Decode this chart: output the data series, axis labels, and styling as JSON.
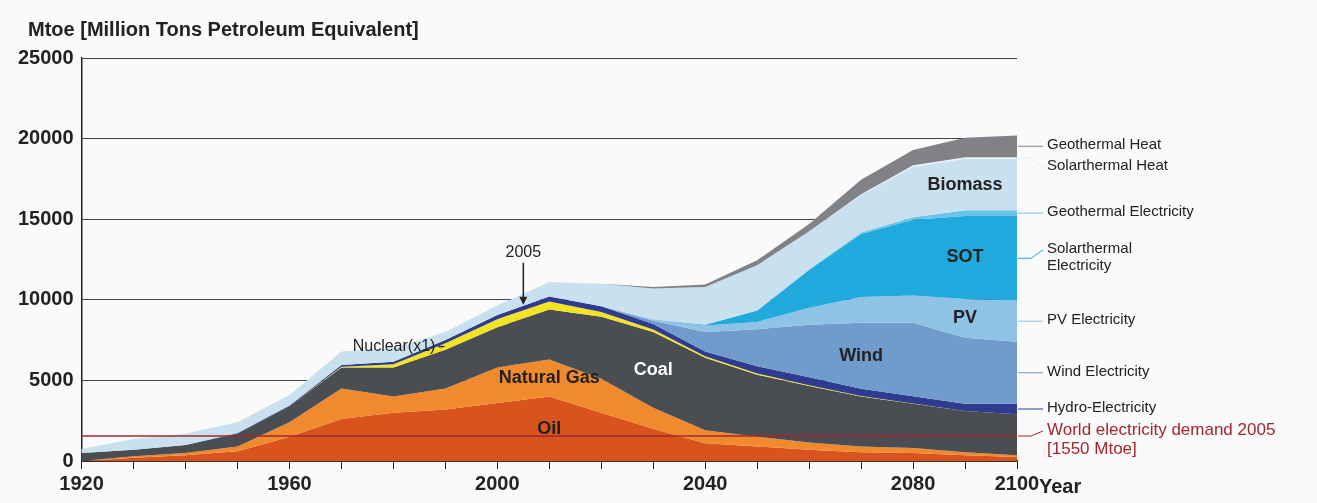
{
  "chart_data": {
    "type": "area",
    "stacked": true,
    "ylabel": "Mtoe [Million Tons Petroleum Equivalent]",
    "xlabel": "Year",
    "grid": "y",
    "legend": "right",
    "x": [
      1920,
      1930,
      1940,
      1950,
      1960,
      1970,
      1980,
      1990,
      2000,
      2010,
      2020,
      2030,
      2040,
      2050,
      2060,
      2070,
      2080,
      2090,
      2100
    ],
    "xlim": [
      1920,
      2100
    ],
    "xticks": [
      1920,
      {
        "value": 1930,
        "label": null
      },
      {
        "value": 1940,
        "label": null
      },
      {
        "value": 1950,
        "label": null
      },
      1960,
      {
        "value": 1970,
        "label": null
      },
      {
        "value": 1980,
        "label": null
      },
      {
        "value": 1990,
        "label": null
      },
      2000,
      {
        "value": 2010,
        "label": null
      },
      {
        "value": 2020,
        "label": null
      },
      {
        "value": 2030,
        "label": null
      },
      2040,
      {
        "value": 2050,
        "label": null
      },
      {
        "value": 2060,
        "label": null
      },
      {
        "value": 2070,
        "label": null
      },
      2080,
      {
        "value": 2090,
        "label": null
      },
      2100
    ],
    "ylim": [
      0,
      25000
    ],
    "yticks": [
      0,
      5000,
      10000,
      15000,
      20000,
      25000
    ],
    "series": [
      {
        "name": "Oil",
        "color": "#d9531e",
        "values": [
          0,
          200,
          350,
          600,
          1500,
          2600,
          3000,
          3200,
          3600,
          4000,
          3000,
          2000,
          1100,
          900,
          700,
          550,
          500,
          350,
          250
        ]
      },
      {
        "name": "Natural Gas",
        "color": "#f08a2c",
        "values": [
          0,
          100,
          150,
          300,
          900,
          1900,
          1000,
          1300,
          2200,
          2300,
          2100,
          1300,
          800,
          600,
          450,
          350,
          300,
          200,
          100
        ]
      },
      {
        "name": "Coal",
        "color": "#4a4d52",
        "values": [
          500,
          400,
          500,
          800,
          1000,
          1300,
          1800,
          2400,
          2500,
          3100,
          3850,
          4700,
          4500,
          3850,
          3500,
          3100,
          2750,
          2550,
          2550
        ]
      },
      {
        "name": "Nuclear(x1)",
        "color": "#f2e422",
        "values": [
          null,
          null,
          null,
          null,
          0,
          50,
          200,
          400,
          500,
          500,
          300,
          150,
          100,
          80,
          50,
          30,
          20,
          0,
          null
        ]
      },
      {
        "name": "Hydro-Electricity",
        "color": "#2e3b8f",
        "values": [
          0,
          0,
          0,
          30,
          50,
          100,
          150,
          200,
          250,
          300,
          350,
          350,
          300,
          450,
          500,
          450,
          450,
          450,
          650
        ]
      },
      {
        "name": "Wind Electricity",
        "color": "#6f9ccb",
        "values": [
          null,
          null,
          null,
          null,
          null,
          null,
          null,
          null,
          null,
          null,
          0,
          200,
          1200,
          2300,
          3250,
          4100,
          4550,
          4100,
          3850
        ]
      },
      {
        "name": "PV Electricity",
        "color": "#8ec3e6",
        "values": [
          null,
          null,
          null,
          null,
          null,
          null,
          null,
          null,
          null,
          null,
          0,
          100,
          400,
          450,
          1050,
          1600,
          1700,
          2400,
          2550
        ]
      },
      {
        "name": "Solarthermal Electricity",
        "color": "#1fa9dd",
        "values": [
          null,
          null,
          null,
          null,
          null,
          null,
          null,
          null,
          null,
          null,
          null,
          0,
          50,
          700,
          2350,
          3900,
          4700,
          5150,
          5250
        ]
      },
      {
        "name": "Geothermal Electricity",
        "color": "#6cc4e8",
        "values": [
          null,
          null,
          null,
          null,
          null,
          null,
          null,
          null,
          null,
          null,
          null,
          null,
          null,
          0,
          50,
          100,
          150,
          350,
          350
        ]
      },
      {
        "name": "Biomass",
        "color": "#c9e1ef",
        "values": [
          250,
          670,
          700,
          670,
          650,
          850,
          850,
          500,
          600,
          900,
          1400,
          1900,
          2350,
          2820,
          2350,
          2320,
          3130,
          3200,
          3200
        ]
      },
      {
        "name": "Solarthermal Heat",
        "color": "#e6f0f6",
        "values": [
          null,
          null,
          null,
          null,
          null,
          null,
          null,
          null,
          null,
          null,
          null,
          null,
          null,
          null,
          0,
          50,
          100,
          100,
          100
        ]
      },
      {
        "name": "Geothermal Heat",
        "color": "#808285",
        "values": [
          null,
          null,
          null,
          null,
          null,
          null,
          null,
          null,
          null,
          null,
          0,
          100,
          150,
          300,
          450,
          900,
          950,
          1200,
          1350
        ]
      }
    ],
    "ref_lines": [
      {
        "axis": "y",
        "value": 1550,
        "label": "World electricity demand 2005 [1550 Mtoe]",
        "color": "#a0282d"
      }
    ],
    "annotations": [
      {
        "text": "2005",
        "x": 2005,
        "y": 9700
      },
      "SOT",
      "PV",
      "Wind"
    ]
  }
}
